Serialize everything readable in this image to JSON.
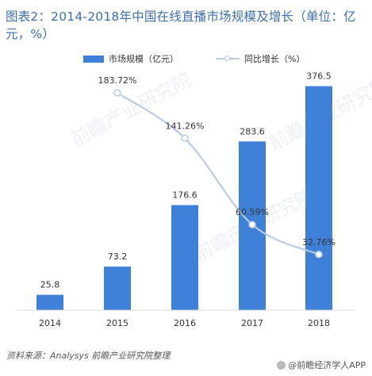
{
  "title": "图表2：2014-2018年中国在线直播市场规模及增长（单位：亿元，%）",
  "source": "资料来源：Analysys 前瞻产业研究院整理",
  "footer_brand": "@前瞻经济学人APP",
  "watermark_text": "前瞻产业研究院",
  "colors": {
    "bar": "#3f80d8",
    "line": "#b8cbe6",
    "title": "#3d6fb3"
  },
  "chart_data": {
    "type": "bar",
    "categories": [
      "2014",
      "2015",
      "2016",
      "2017",
      "2018"
    ],
    "series": [
      {
        "name": "市场规模（亿元）",
        "type": "bar",
        "values": [
          25.8,
          73.2,
          176.6,
          283.6,
          376.5
        ],
        "labels": [
          "25.8",
          "73.2",
          "176.6",
          "283.6",
          "376.5"
        ]
      },
      {
        "name": "同比增长（%）",
        "type": "line",
        "x": [
          "2015",
          "2016",
          "2017",
          "2018"
        ],
        "values": [
          183.72,
          141.26,
          60.59,
          32.76
        ],
        "labels": [
          "183.72%",
          "141.26%",
          "60.59%",
          "32.76%"
        ]
      }
    ],
    "legend_position": "top-center",
    "grid": false
  }
}
